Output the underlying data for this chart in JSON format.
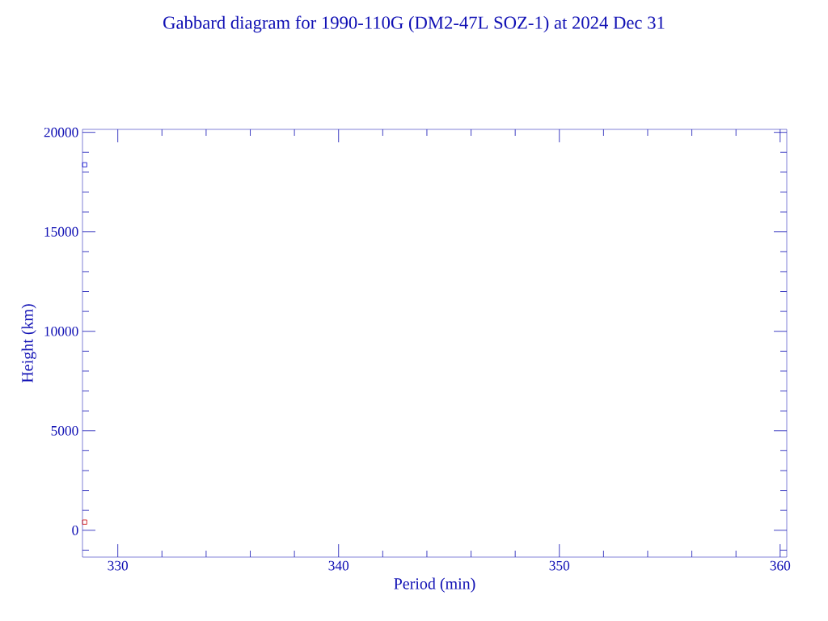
{
  "chart_data": {
    "type": "scatter",
    "title": "Gabbard diagram for 1990-110G (DM2-47L SOZ-1) at 2024 Dec 31",
    "xlabel": "Period (min)",
    "ylabel": "Height (km)",
    "x": [
      328.5,
      328.5
    ],
    "values": [
      18370,
      410
    ],
    "colors": [
      "#0000cc",
      "#cc0000"
    ],
    "marker": "square",
    "xlim": [
      328.4,
      360.3
    ],
    "ylim": [
      -1350,
      20150
    ],
    "xticks": [
      330,
      {
        "value": 332,
        "label": null
      },
      {
        "value": 334,
        "label": null
      },
      {
        "value": 336,
        "label": null
      },
      {
        "value": 338,
        "label": null
      },
      340,
      {
        "value": 342,
        "label": null
      },
      {
        "value": 344,
        "label": null
      },
      {
        "value": 346,
        "label": null
      },
      {
        "value": 348,
        "label": null
      },
      350,
      {
        "value": 352,
        "label": null
      },
      {
        "value": 354,
        "label": null
      },
      {
        "value": 356,
        "label": null
      },
      {
        "value": 358,
        "label": null
      },
      360
    ],
    "yticks": [
      {
        "value": -1000,
        "label": null
      },
      0,
      {
        "value": 1000,
        "label": null
      },
      {
        "value": 2000,
        "label": null
      },
      {
        "value": 3000,
        "label": null
      },
      {
        "value": 4000,
        "label": null
      },
      5000,
      {
        "value": 6000,
        "label": null
      },
      {
        "value": 7000,
        "label": null
      },
      {
        "value": 8000,
        "label": null
      },
      {
        "value": 9000,
        "label": null
      },
      10000,
      {
        "value": 11000,
        "label": null
      },
      {
        "value": 12000,
        "label": null
      },
      {
        "value": 13000,
        "label": null
      },
      {
        "value": 14000,
        "label": null
      },
      15000,
      {
        "value": 16000,
        "label": null
      },
      {
        "value": 17000,
        "label": null
      },
      {
        "value": 18000,
        "label": null
      },
      {
        "value": 19000,
        "label": null
      },
      20000
    ]
  }
}
